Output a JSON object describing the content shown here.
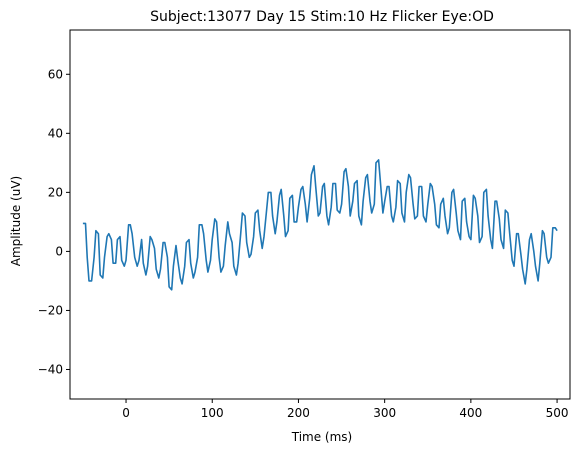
{
  "chart_data": {
    "type": "line",
    "title": "Subject:13077 Day 15 Stim:10 Hz Flicker Eye:OD",
    "xlabel": "Time (ms)",
    "ylabel": "Amplitude (uV)",
    "xlim": [
      -65,
      515
    ],
    "ylim": [
      -50,
      75
    ],
    "xticks": [
      0,
      100,
      200,
      300,
      400,
      500
    ],
    "yticks": [
      -40,
      -20,
      0,
      20,
      40,
      60
    ],
    "grid": false,
    "series": [
      {
        "color": "#1f77b4",
        "x": [
          -50,
          -47,
          -45,
          -43,
          -40,
          -37,
          -35,
          -32,
          -30,
          -27,
          -25,
          -22,
          -20,
          -17,
          -15,
          -12,
          -10,
          -7,
          -5,
          -2,
          0,
          3,
          5,
          7,
          10,
          13,
          15,
          18,
          20,
          23,
          25,
          28,
          30,
          33,
          35,
          38,
          40,
          43,
          45,
          48,
          50,
          53,
          55,
          58,
          60,
          63,
          65,
          68,
          70,
          73,
          75,
          78,
          80,
          83,
          85,
          88,
          90,
          93,
          95,
          98,
          100,
          103,
          105,
          108,
          110,
          113,
          115,
          118,
          120,
          123,
          125,
          128,
          130,
          133,
          135,
          138,
          140,
          143,
          145,
          148,
          150,
          153,
          155,
          158,
          160,
          163,
          165,
          168,
          170,
          173,
          175,
          178,
          180,
          183,
          185,
          188,
          190,
          193,
          195,
          198,
          200,
          203,
          205,
          208,
          210,
          213,
          215,
          218,
          220,
          223,
          225,
          228,
          230,
          233,
          235,
          238,
          240,
          243,
          245,
          248,
          250,
          253,
          255,
          258,
          260,
          263,
          265,
          268,
          270,
          273,
          275,
          278,
          280,
          283,
          285,
          288,
          290,
          293,
          295,
          298,
          300,
          303,
          305,
          308,
          310,
          313,
          315,
          318,
          320,
          323,
          325,
          328,
          330,
          333,
          335,
          338,
          340,
          343,
          345,
          348,
          350,
          353,
          355,
          358,
          360,
          363,
          365,
          368,
          370,
          373,
          375,
          378,
          380,
          383,
          385,
          388,
          390,
          393,
          395,
          398,
          400,
          403,
          405,
          408,
          410,
          413,
          415,
          418,
          420,
          423,
          425,
          428,
          430,
          433,
          435,
          438,
          440,
          443,
          445,
          448,
          450,
          453,
          455,
          458,
          460,
          463,
          465,
          468,
          470,
          473,
          475,
          478,
          480,
          483,
          485,
          488,
          490,
          493,
          495,
          498,
          500
        ],
        "y": [
          9.5,
          9.5,
          -2,
          -10,
          -10,
          -2,
          7,
          6,
          -8,
          -9,
          -2,
          5,
          6,
          4,
          -4,
          -4,
          4,
          5,
          -3,
          -5,
          -3,
          9,
          9,
          6,
          -2,
          -5,
          -3,
          4,
          -4,
          -8,
          -5,
          5,
          4,
          1,
          -6,
          -9,
          -6,
          3,
          3,
          -2,
          -12,
          -13,
          -5,
          2,
          -3,
          -9,
          -11,
          -5,
          3,
          4,
          -4,
          -9,
          -7,
          -2,
          9,
          9,
          6,
          -3,
          -7,
          -3,
          4,
          11,
          10,
          -2,
          -7,
          -5,
          2,
          10,
          6,
          3,
          -5,
          -8,
          -4,
          6,
          13,
          12,
          3,
          -2,
          -1,
          5,
          13,
          14,
          7,
          1,
          5,
          14,
          20,
          20,
          12,
          6,
          10,
          19,
          21,
          12,
          5,
          7,
          18,
          19,
          10,
          10,
          15,
          21,
          22,
          16,
          10,
          18,
          26,
          29,
          22,
          12,
          13,
          22,
          23,
          12,
          9,
          15,
          23,
          23,
          14,
          13,
          16,
          27,
          28,
          22,
          12,
          17,
          23,
          24,
          12,
          9,
          17,
          25,
          26,
          17,
          13,
          16,
          30,
          31,
          24,
          13,
          17,
          22,
          22,
          12,
          10,
          15,
          24,
          23,
          13,
          10,
          20,
          26,
          25,
          16,
          11,
          12,
          22,
          22,
          12,
          10,
          16,
          23,
          22,
          16,
          9,
          8,
          16,
          18,
          12,
          6,
          8,
          20,
          21,
          13,
          7,
          4,
          17,
          18,
          10,
          5,
          4,
          19,
          18,
          12,
          3,
          5,
          20,
          21,
          12,
          4,
          1,
          17,
          17,
          11,
          4,
          1,
          14,
          13,
          6,
          -3,
          -5,
          6,
          6,
          -1,
          -6,
          -11,
          -6,
          4,
          6,
          0,
          -5,
          -10,
          -4,
          7,
          6,
          -2,
          -4,
          -2,
          8,
          8,
          7
        ]
      }
    ]
  }
}
